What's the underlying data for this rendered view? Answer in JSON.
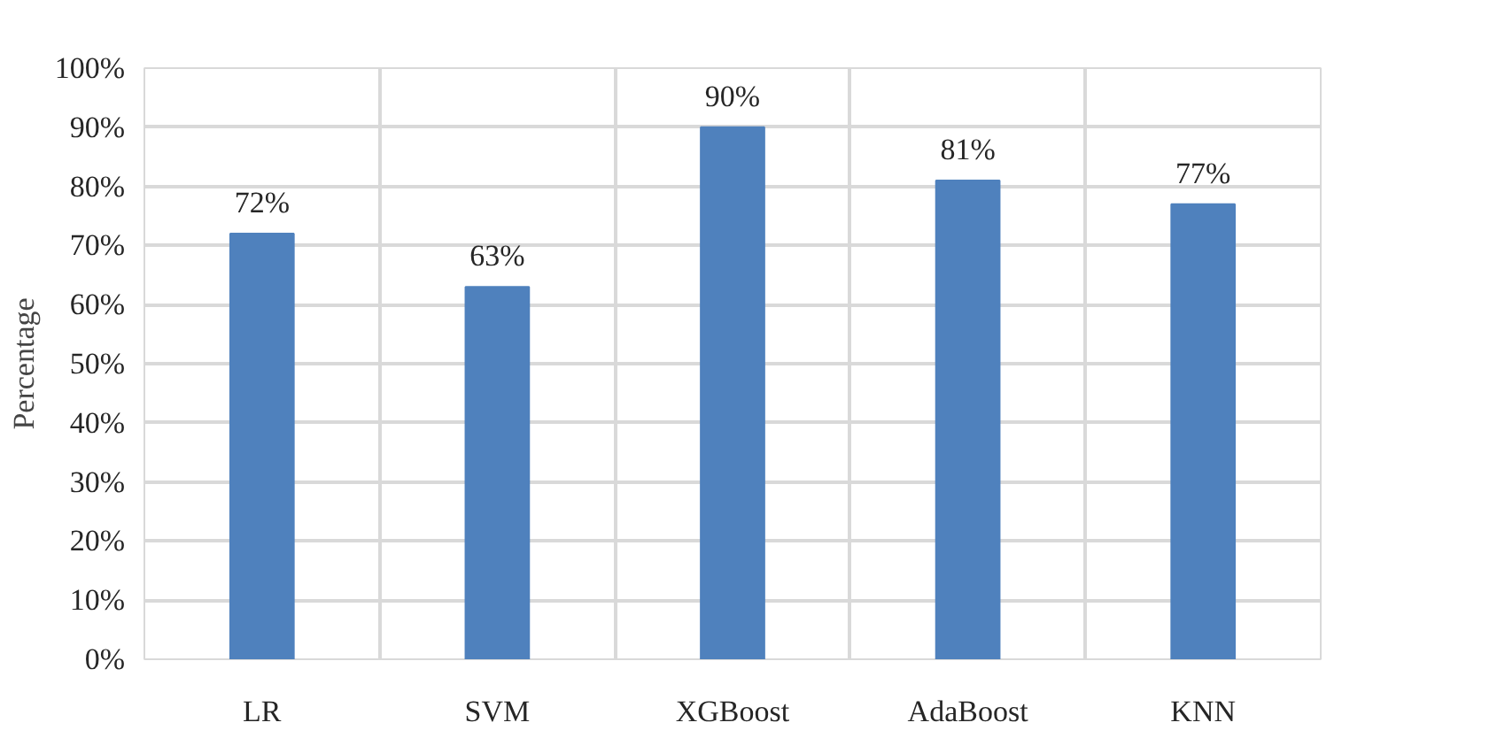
{
  "chart_data": {
    "type": "bar",
    "ylabel": "Percentage",
    "categories": [
      "LR",
      "SVM",
      "XGBoost",
      "AdaBoost",
      "KNN"
    ],
    "values": [
      72,
      63,
      90,
      81,
      77
    ],
    "color": "#4f81bd",
    "value_labels": [
      "72%",
      "63%",
      "90%",
      "81%",
      "77%"
    ],
    "ylim": [
      0,
      100
    ],
    "yticks": [
      {
        "value": 0,
        "label": "0%"
      },
      {
        "value": 10,
        "label": "10%"
      },
      {
        "value": 20,
        "label": "20%"
      },
      {
        "value": 30,
        "label": "30%"
      },
      {
        "value": 40,
        "label": "40%"
      },
      {
        "value": 50,
        "label": "50%"
      },
      {
        "value": 60,
        "label": "60%"
      },
      {
        "value": 70,
        "label": "70%"
      },
      {
        "value": 80,
        "label": "80%"
      },
      {
        "value": 90,
        "label": "90%"
      },
      {
        "value": 100,
        "label": "100%"
      }
    ],
    "grid": true
  }
}
